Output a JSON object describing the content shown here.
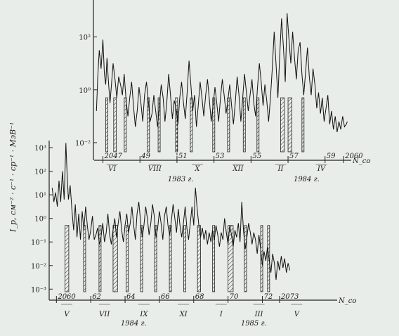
{
  "chart_data": [
    {
      "type": "line",
      "panel": "upper",
      "title": "",
      "ylabel": "I_p, см⁻² · с⁻¹ · ср⁻¹ · МэВ⁻¹",
      "yscale": "log",
      "ylim_log10": [
        -2.4,
        3.4
      ],
      "y_ticks": [
        {
          "label": "10²",
          "value_log10": 2
        },
        {
          "label": "10⁰",
          "value_log10": 0
        },
        {
          "label": "10⁻²",
          "value_log10": -2
        }
      ],
      "x_axis_label": "N_co",
      "rotation_ticks": [
        {
          "label": "2047",
          "rot": 2047
        },
        {
          "label": "49",
          "rot": 2049
        },
        {
          "label": "51",
          "rot": 2051
        },
        {
          "label": "53",
          "rot": 2053
        },
        {
          "label": "55",
          "rot": 2055
        },
        {
          "label": "57",
          "rot": 2057
        },
        {
          "label": "59",
          "rot": 2059
        },
        {
          "label": "2060",
          "rot": 2060
        }
      ],
      "months": [
        {
          "label": "VI",
          "rot": 2047.5
        },
        {
          "label": "VIII",
          "rot": 2049.8
        },
        {
          "label": "X",
          "rot": 2052.1
        },
        {
          "label": "XII",
          "rot": 2054.3
        },
        {
          "label": "II",
          "rot": 2056.6
        },
        {
          "label": "IV",
          "rot": 2058.8
        }
      ],
      "years": [
        {
          "label": "1983 г.",
          "rot": 2051.2
        },
        {
          "label": "1984 г.",
          "rot": 2058.0
        }
      ],
      "xlim_rot": [
        2046.6,
        2060.3
      ],
      "series": [
        {
          "rot": [
            2046.65,
            2046.72,
            2046.8,
            2046.9,
            2047.0,
            2047.08,
            2047.15,
            2047.22,
            2047.3,
            2047.38,
            2047.45,
            2047.55,
            2047.65,
            2047.75,
            2047.85,
            2047.95,
            2048.05,
            2048.15,
            2048.25,
            2048.35,
            2048.45,
            2048.55,
            2048.65,
            2048.75,
            2048.85,
            2048.95,
            2049.05,
            2049.15,
            2049.25,
            2049.35,
            2049.45,
            2049.55,
            2049.65,
            2049.75,
            2049.85,
            2049.95,
            2050.05,
            2050.15,
            2050.25,
            2050.35,
            2050.45,
            2050.55,
            2050.65,
            2050.75,
            2050.85,
            2050.95,
            2051.05,
            2051.15,
            2051.25,
            2051.35,
            2051.45,
            2051.55,
            2051.65,
            2051.75,
            2051.85,
            2051.95,
            2052.05,
            2052.15,
            2052.25,
            2052.35,
            2052.45,
            2052.55,
            2052.65,
            2052.75,
            2052.85,
            2052.95,
            2053.05,
            2053.15,
            2053.25,
            2053.35,
            2053.45,
            2053.55,
            2053.65,
            2053.75,
            2053.85,
            2053.95,
            2054.05,
            2054.15,
            2054.25,
            2054.35,
            2054.45,
            2054.55,
            2054.65,
            2054.75,
            2054.85,
            2054.95,
            2055.05,
            2055.15,
            2055.25,
            2055.35,
            2055.45,
            2055.55,
            2055.65,
            2055.75,
            2055.85,
            2055.95,
            2056.05,
            2056.15,
            2056.25,
            2056.35,
            2056.45,
            2056.55,
            2056.65,
            2056.75,
            2056.85,
            2056.95,
            2057.05,
            2057.15,
            2057.25,
            2057.35,
            2057.45,
            2057.55,
            2057.65,
            2057.75,
            2057.85,
            2057.95,
            2058.05,
            2058.15,
            2058.25,
            2058.35,
            2058.45,
            2058.55,
            2058.65,
            2058.75,
            2058.85,
            2058.95,
            2059.05,
            2059.15,
            2059.25,
            2059.35,
            2059.45,
            2059.55,
            2059.65,
            2059.75,
            2059.85,
            2059.95,
            2060.05,
            2060.15,
            2060.2
          ],
          "log10_I": [
            -0.8,
            0.5,
            1.5,
            0.8,
            1.9,
            0.6,
            0.2,
            1.2,
            0.3,
            -0.5,
            0.1,
            1.0,
            0.4,
            -0.3,
            0.5,
            0.2,
            -0.2,
            0.6,
            -0.4,
            -1.0,
            -0.3,
            0.3,
            -0.6,
            -1.4,
            -0.8,
            0.1,
            -0.5,
            -1.2,
            -0.2,
            0.3,
            -0.4,
            -1.2,
            -0.9,
            -0.2,
            -0.8,
            -1.4,
            -0.6,
            0.2,
            -0.3,
            -1.2,
            -0.5,
            0.6,
            -0.2,
            -1.1,
            -0.4,
            -0.7,
            -1.3,
            -0.3,
            0.3,
            -0.5,
            -1.1,
            -0.1,
            1.1,
            0.2,
            -0.8,
            -0.2,
            -1.4,
            -0.6,
            0.3,
            -0.3,
            -1.0,
            -0.2,
            0.4,
            -0.4,
            -1.2,
            -0.6,
            0.1,
            -0.5,
            -1.2,
            -0.3,
            0.4,
            -0.2,
            -0.9,
            -0.4,
            0.2,
            -0.6,
            -1.3,
            -0.5,
            0.5,
            -0.2,
            -1.2,
            -0.3,
            0.6,
            -0.1,
            -0.8,
            -0.2,
            0.4,
            -0.5,
            -1.0,
            0.1,
            1.0,
            0.3,
            -0.6,
            0.2,
            -0.4,
            -1.2,
            -0.3,
            0.8,
            2.2,
            1.0,
            -0.3,
            1.3,
            2.7,
            1.6,
            0.3,
            2.9,
            1.9,
            1.0,
            2.2,
            1.2,
            0.4,
            1.5,
            1.8,
            0.6,
            -0.2,
            0.7,
            1.6,
            0.5,
            -0.2,
            0.8,
            0.2,
            -0.7,
            -0.1,
            -0.9,
            -0.3,
            -1.2,
            -0.7,
            -0.2,
            -1.3,
            -0.8,
            -1.5,
            -1.0,
            -1.6,
            -1.2,
            -1.5,
            -1.0,
            -1.4,
            -1.3,
            -1.2,
            -0.7,
            3.4
          ]
        }
      ],
      "hatched_intervals_rot": [
        [
          2047.15,
          2047.23
        ],
        [
          2047.58,
          2047.72
        ],
        [
          2048.15,
          2048.23
        ],
        [
          2049.4,
          2049.5
        ],
        [
          2049.98,
          2050.06
        ],
        [
          2050.92,
          2051.0
        ],
        [
          2051.72,
          2051.8
        ],
        [
          2052.93,
          2053.0
        ],
        [
          2053.73,
          2053.82
        ],
        [
          2054.58,
          2054.66
        ],
        [
          2055.32,
          2055.4
        ],
        [
          2056.6,
          2056.8
        ],
        [
          2057.0,
          2057.2
        ],
        [
          2057.75,
          2057.83
        ]
      ],
      "dashed_markers_rot": [
        2051.0
      ]
    },
    {
      "type": "line",
      "panel": "lower",
      "title": "",
      "ylabel": "I_p, см⁻² · с⁻¹ · ср⁻¹ · МэВ⁻¹",
      "yscale": "log",
      "ylim_log10": [
        -3.2,
        3.3
      ],
      "y_ticks": [
        {
          "label": "10³",
          "value_log10": 3
        },
        {
          "label": "10²",
          "value_log10": 2
        },
        {
          "label": "10¹",
          "value_log10": 1
        },
        {
          "label": "10⁰",
          "value_log10": 0
        },
        {
          "label": "10⁻¹",
          "value_log10": -1
        },
        {
          "label": "10⁻²",
          "value_log10": -2
        },
        {
          "label": "10⁻³",
          "value_log10": -3
        }
      ],
      "x_axis_label": "N_co",
      "rotation_ticks": [
        {
          "label": "2060",
          "rot": 2060
        },
        {
          "label": "62",
          "rot": 2062
        },
        {
          "label": "64",
          "rot": 2064
        },
        {
          "label": "66",
          "rot": 2066
        },
        {
          "label": "68",
          "rot": 2068
        },
        {
          "label": "70",
          "rot": 2070
        },
        {
          "label": "72",
          "rot": 2072
        },
        {
          "label": "2073",
          "rot": 2073
        }
      ],
      "months": [
        {
          "label": "V",
          "rot": 2060.6
        },
        {
          "label": "VII",
          "rot": 2062.8
        },
        {
          "label": "IX",
          "rot": 2065.1
        },
        {
          "label": "XI",
          "rot": 2067.4
        },
        {
          "label": "I",
          "rot": 2069.6
        },
        {
          "label": "III",
          "rot": 2071.8
        },
        {
          "label": "V",
          "rot": 2074.0
        }
      ],
      "years": [
        {
          "label": "1984 г.",
          "rot": 2064.5
        },
        {
          "label": "1985 г.",
          "rot": 2071.5
        }
      ],
      "xlim_rot": [
        2059.7,
        2074.6
      ],
      "series": [
        {
          "rot": [
            2059.75,
            2059.85,
            2059.95,
            2060.05,
            2060.15,
            2060.25,
            2060.35,
            2060.45,
            2060.55,
            2060.62,
            2060.7,
            2060.8,
            2060.9,
            2061.0,
            2061.1,
            2061.2,
            2061.3,
            2061.4,
            2061.5,
            2061.6,
            2061.7,
            2061.8,
            2061.9,
            2062.0,
            2062.1,
            2062.2,
            2062.3,
            2062.4,
            2062.5,
            2062.6,
            2062.7,
            2062.8,
            2062.9,
            2063.0,
            2063.1,
            2063.2,
            2063.3,
            2063.4,
            2063.5,
            2063.6,
            2063.7,
            2063.8,
            2063.9,
            2064.0,
            2064.1,
            2064.2,
            2064.3,
            2064.4,
            2064.5,
            2064.6,
            2064.7,
            2064.8,
            2064.9,
            2065.0,
            2065.1,
            2065.2,
            2065.3,
            2065.4,
            2065.5,
            2065.6,
            2065.7,
            2065.8,
            2065.9,
            2066.0,
            2066.1,
            2066.2,
            2066.3,
            2066.4,
            2066.5,
            2066.6,
            2066.7,
            2066.8,
            2066.9,
            2067.0,
            2067.1,
            2067.2,
            2067.3,
            2067.4,
            2067.5,
            2067.6,
            2067.7,
            2067.8,
            2067.9,
            2068.0,
            2068.1,
            2068.2,
            2068.3,
            2068.4,
            2068.5,
            2068.6,
            2068.7,
            2068.8,
            2068.9,
            2069.0,
            2069.1,
            2069.2,
            2069.3,
            2069.4,
            2069.5,
            2069.6,
            2069.7,
            2069.8,
            2069.9,
            2070.0,
            2070.1,
            2070.2,
            2070.3,
            2070.4,
            2070.5,
            2070.6,
            2070.7,
            2070.8,
            2070.9,
            2071.0,
            2071.1,
            2071.2,
            2071.3,
            2071.4,
            2071.5,
            2071.6,
            2071.7,
            2071.8,
            2071.9,
            2072.0,
            2072.1,
            2072.2,
            2072.3,
            2072.4,
            2072.5,
            2072.6,
            2072.7,
            2072.8,
            2072.9,
            2073.0,
            2073.1,
            2073.2,
            2073.3,
            2073.4,
            2073.5,
            2073.6,
            2073.7,
            2073.8
          ],
          "log10_I": [
            1.3,
            0.7,
            1.1,
            0.5,
            1.6,
            0.7,
            2.0,
            0.8,
            3.2,
            1.9,
            0.8,
            1.4,
            0.4,
            -0.5,
            0.6,
            -0.8,
            0.2,
            -0.9,
            0.3,
            -0.5,
            0.5,
            -0.3,
            -0.9,
            -0.5,
            0.1,
            -0.9,
            -0.7,
            -0.4,
            -1.1,
            -0.8,
            -0.2,
            -1.0,
            -0.6,
            0.2,
            -0.7,
            -1.1,
            -0.5,
            0.0,
            -0.8,
            -0.2,
            0.3,
            -0.5,
            -1.0,
            -0.3,
            0.2,
            -0.6,
            -0.2,
            0.5,
            -0.3,
            -0.9,
            0.2,
            0.7,
            -0.1,
            -0.8,
            -0.3,
            0.5,
            0.0,
            -0.7,
            -0.2,
            0.6,
            0.1,
            -0.8,
            -0.4,
            0.3,
            -0.2,
            -0.9,
            0.1,
            0.5,
            -0.3,
            -0.7,
            -0.1,
            0.6,
            0.0,
            -0.6,
            0.4,
            -0.3,
            -0.8,
            -0.2,
            0.5,
            -0.4,
            -0.9,
            -0.2,
            0.5,
            -0.3,
            1.3,
            0.4,
            -0.3,
            -0.8,
            -0.4,
            -0.9,
            -0.5,
            -1.1,
            -0.6,
            -1.0,
            -0.5,
            -0.9,
            -0.3,
            -0.7,
            -1.2,
            -0.6,
            -0.9,
            0.0,
            -0.6,
            -1.1,
            -0.3,
            -0.7,
            -1.2,
            -0.5,
            -0.8,
            -0.2,
            -1.0,
            0.7,
            -0.5,
            -1.3,
            -0.8,
            -0.2,
            -0.6,
            -1.1,
            -0.6,
            -0.9,
            -1.5,
            -0.7,
            -1.3,
            -2.0,
            -1.4,
            -1.8,
            -1.2,
            -1.8,
            -2.3,
            -1.5,
            -1.9,
            -2.6,
            -1.8,
            -2.2,
            -1.6,
            -2.1,
            -1.7,
            -2.3,
            -1.9,
            -2.2
          ]
        }
      ],
      "hatched_intervals_rot": [
        [
          2060.5,
          2060.72
        ],
        [
          2061.58,
          2061.64
        ],
        [
          2062.48,
          2062.56
        ],
        [
          2063.3,
          2063.56
        ],
        [
          2064.06,
          2064.14
        ],
        [
          2064.9,
          2064.98
        ],
        [
          2065.72,
          2065.8
        ],
        [
          2066.58,
          2066.66
        ],
        [
          2067.42,
          2067.5
        ],
        [
          2068.22,
          2068.4
        ],
        [
          2069.1,
          2069.18
        ],
        [
          2070.0,
          2070.3
        ],
        [
          2070.95,
          2071.08
        ],
        [
          2071.9,
          2072.0
        ],
        [
          2072.3,
          2072.38
        ]
      ],
      "dashed_markers_rot": []
    }
  ]
}
